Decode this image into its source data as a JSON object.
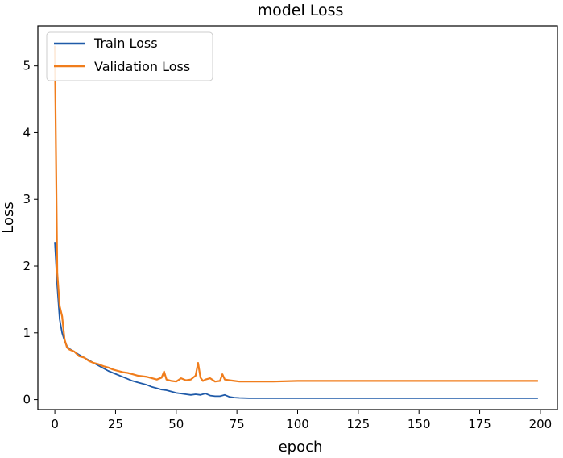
{
  "chart_data": {
    "type": "line",
    "title": "model Loss",
    "xlabel": "epoch",
    "ylabel": "Loss",
    "xlim": [
      -7,
      207
    ],
    "ylim": [
      -0.15,
      5.6
    ],
    "xticks": [
      0,
      25,
      50,
      75,
      100,
      125,
      150,
      175,
      200
    ],
    "yticks": [
      0,
      1,
      2,
      3,
      4,
      5
    ],
    "grid": false,
    "legend_position": "top-left",
    "series": [
      {
        "name": "Train Loss",
        "color": "#1f5aa8",
        "x": [
          0,
          1,
          2,
          3,
          4,
          5,
          6,
          8,
          10,
          12,
          14,
          16,
          18,
          20,
          22,
          24,
          26,
          28,
          30,
          32,
          34,
          36,
          38,
          40,
          42,
          44,
          46,
          48,
          50,
          52,
          54,
          56,
          58,
          60,
          62,
          64,
          66,
          68,
          70,
          72,
          74,
          76,
          80,
          90,
          100,
          125,
          150,
          175,
          199
        ],
        "values": [
          2.36,
          1.7,
          1.2,
          1.0,
          0.88,
          0.8,
          0.76,
          0.72,
          0.67,
          0.63,
          0.59,
          0.55,
          0.51,
          0.47,
          0.43,
          0.4,
          0.37,
          0.34,
          0.31,
          0.28,
          0.26,
          0.24,
          0.22,
          0.19,
          0.17,
          0.15,
          0.14,
          0.12,
          0.1,
          0.09,
          0.08,
          0.07,
          0.08,
          0.07,
          0.09,
          0.06,
          0.05,
          0.05,
          0.07,
          0.04,
          0.03,
          0.025,
          0.02,
          0.02,
          0.02,
          0.02,
          0.02,
          0.02,
          0.02
        ]
      },
      {
        "name": "Validation Loss",
        "color": "#f07d1c",
        "x": [
          0,
          1,
          2,
          3,
          4,
          5,
          6,
          8,
          10,
          12,
          14,
          16,
          18,
          20,
          22,
          24,
          26,
          28,
          30,
          32,
          34,
          36,
          38,
          40,
          42,
          44,
          45,
          46,
          48,
          50,
          52,
          54,
          56,
          58,
          59,
          60,
          61,
          62,
          64,
          66,
          68,
          69,
          70,
          72,
          74,
          76,
          80,
          90,
          100,
          125,
          150,
          175,
          199
        ],
        "values": [
          5.3,
          1.9,
          1.4,
          1.25,
          0.9,
          0.78,
          0.75,
          0.72,
          0.65,
          0.63,
          0.58,
          0.55,
          0.53,
          0.5,
          0.48,
          0.45,
          0.43,
          0.41,
          0.4,
          0.38,
          0.36,
          0.35,
          0.34,
          0.32,
          0.3,
          0.33,
          0.42,
          0.3,
          0.28,
          0.27,
          0.32,
          0.29,
          0.3,
          0.36,
          0.55,
          0.33,
          0.28,
          0.3,
          0.32,
          0.27,
          0.28,
          0.38,
          0.3,
          0.29,
          0.28,
          0.27,
          0.27,
          0.27,
          0.28,
          0.28,
          0.28,
          0.28,
          0.28
        ]
      }
    ]
  }
}
